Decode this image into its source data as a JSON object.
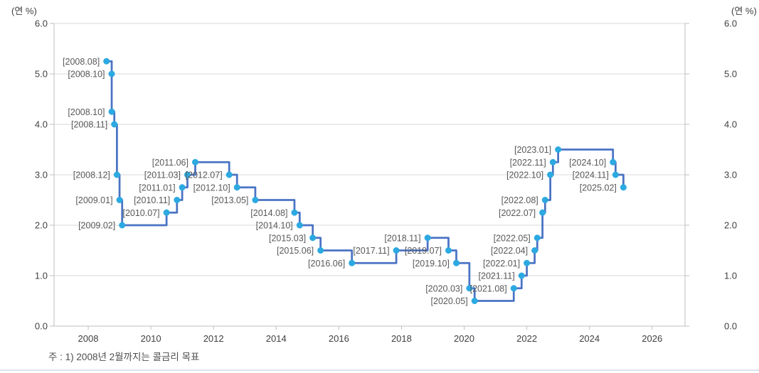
{
  "axes": {
    "left_unit_label": "(연 %)",
    "right_unit_label": "(연 %)",
    "y_ticks": [
      "6.0",
      "5.0",
      "4.0",
      "3.0",
      "2.0",
      "1.0",
      "0.0"
    ],
    "x_ticks": [
      "2008",
      "2010",
      "2012",
      "2014",
      "2016",
      "2018",
      "2020",
      "2022",
      "2024",
      "2026"
    ]
  },
  "footnote": "주 : 1) 2008년 2월까지는 콜금리 목표",
  "colors": {
    "line": "#4a73c4",
    "marker": "#2ca9e1",
    "point_label": "#595959",
    "axis_text": "#404040",
    "gridline": "#d9d9d9",
    "axis_line": "#bfbfbf",
    "separator": "#dce4ef",
    "background": "#ffffff"
  },
  "chart_data": {
    "type": "line",
    "step": "after",
    "title": "",
    "ylabel_left": "(연 %)",
    "ylabel_right": "(연 %)",
    "ylim": [
      0.0,
      6.0
    ],
    "y_tick_step": 1.0,
    "xlim_years": [
      2006.91,
      2027.05
    ],
    "x_tick_years": [
      2008,
      2010,
      2012,
      2014,
      2016,
      2018,
      2020,
      2022,
      2024,
      2026
    ],
    "grid": "horizontal",
    "legend": "none",
    "note": "주 : 1) 2008년 2월까지는 콜금리 목표",
    "points": [
      {
        "label": "[2008.08]",
        "year": 2008,
        "month": 8,
        "value": 5.25
      },
      {
        "label": "[2008.10]",
        "year": 2008,
        "month": 10,
        "value": 5.0
      },
      {
        "label": "[2008.10]",
        "year": 2008,
        "month": 10,
        "value": 4.25
      },
      {
        "label": "[2008.11]",
        "year": 2008,
        "month": 11,
        "value": 4.0
      },
      {
        "label": "[2008.12]",
        "year": 2008,
        "month": 12,
        "value": 3.0
      },
      {
        "label": "[2009.01]",
        "year": 2009,
        "month": 1,
        "value": 2.5
      },
      {
        "label": "[2009.02]",
        "year": 2009,
        "month": 2,
        "value": 2.0
      },
      {
        "label": "[2010.07]",
        "year": 2010,
        "month": 7,
        "value": 2.25
      },
      {
        "label": "[2010.11]",
        "year": 2010,
        "month": 11,
        "value": 2.5
      },
      {
        "label": "[2011.01]",
        "year": 2011,
        "month": 1,
        "value": 2.75
      },
      {
        "label": "[2011.03]",
        "year": 2011,
        "month": 3,
        "value": 3.0
      },
      {
        "label": "[2011.06]",
        "year": 2011,
        "month": 6,
        "value": 3.25
      },
      {
        "label": "[2012.07]",
        "year": 2012,
        "month": 7,
        "value": 3.0
      },
      {
        "label": "[2012.10]",
        "year": 2012,
        "month": 10,
        "value": 2.75
      },
      {
        "label": "[2013.05]",
        "year": 2013,
        "month": 5,
        "value": 2.5
      },
      {
        "label": "[2014.08]",
        "year": 2014,
        "month": 8,
        "value": 2.25
      },
      {
        "label": "[2014.10]",
        "year": 2014,
        "month": 10,
        "value": 2.0
      },
      {
        "label": "[2015.03]",
        "year": 2015,
        "month": 3,
        "value": 1.75
      },
      {
        "label": "[2015.06]",
        "year": 2015,
        "month": 6,
        "value": 1.5
      },
      {
        "label": "[2016.06]",
        "year": 2016,
        "month": 6,
        "value": 1.25
      },
      {
        "label": "[2017.11]",
        "year": 2017,
        "month": 11,
        "value": 1.5
      },
      {
        "label": "[2018.11]",
        "year": 2018,
        "month": 11,
        "value": 1.75
      },
      {
        "label": "[2019.07]",
        "year": 2019,
        "month": 7,
        "value": 1.5
      },
      {
        "label": "[2019.10]",
        "year": 2019,
        "month": 10,
        "value": 1.25
      },
      {
        "label": "[2020.03]",
        "year": 2020,
        "month": 3,
        "value": 0.75
      },
      {
        "label": "[2020.05]",
        "year": 2020,
        "month": 5,
        "value": 0.5
      },
      {
        "label": "[2021.08]",
        "year": 2021,
        "month": 8,
        "value": 0.75
      },
      {
        "label": "[2021.11]",
        "year": 2021,
        "month": 11,
        "value": 1.0
      },
      {
        "label": "[2022.01]",
        "year": 2022,
        "month": 1,
        "value": 1.25
      },
      {
        "label": "[2022.04]",
        "year": 2022,
        "month": 4,
        "value": 1.5
      },
      {
        "label": "[2022.05]",
        "year": 2022,
        "month": 5,
        "value": 1.75
      },
      {
        "label": "[2022.07]",
        "year": 2022,
        "month": 7,
        "value": 2.25
      },
      {
        "label": "[2022.08]",
        "year": 2022,
        "month": 8,
        "value": 2.5
      },
      {
        "label": "[2022.10]",
        "year": 2022,
        "month": 10,
        "value": 3.0
      },
      {
        "label": "[2022.11]",
        "year": 2022,
        "month": 11,
        "value": 3.25
      },
      {
        "label": "[2023.01]",
        "year": 2023,
        "month": 1,
        "value": 3.5
      },
      {
        "label": "[2024.10]",
        "year": 2024,
        "month": 10,
        "value": 3.25
      },
      {
        "label": "[2024.11]",
        "year": 2024,
        "month": 11,
        "value": 3.0
      },
      {
        "label": "[2025.02]",
        "year": 2025,
        "month": 2,
        "value": 2.75
      }
    ]
  }
}
